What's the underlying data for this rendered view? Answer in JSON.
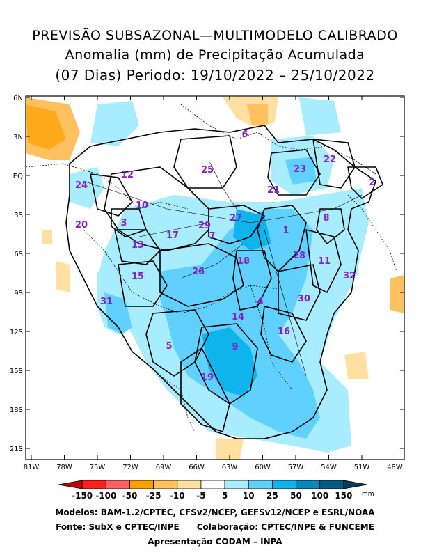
{
  "title": {
    "line1": "PREVISÃO SUBSAZONAL—MULTIMODELO CALIBRADO",
    "line2": "Anomalia (mm) de Precipitação Acumulada",
    "line3": "(07 Dias) Periodo: 19/10/2022 – 25/10/2022"
  },
  "lat_labels": [
    "6N",
    "3N",
    "EQ",
    "3S",
    "6S",
    "9S",
    "12S",
    "15S",
    "18S",
    "21S"
  ],
  "lon_labels": [
    "81W",
    "78W",
    "75W",
    "72W",
    "69W",
    "66W",
    "63W",
    "60W",
    "57W",
    "54W",
    "51W",
    "48W"
  ],
  "basins": [
    "1",
    "2",
    "3",
    "4",
    "5",
    "6",
    "7",
    "8",
    "9",
    "10",
    "11",
    "12",
    "13",
    "14",
    "15",
    "16",
    "17",
    "18",
    "19",
    "20",
    "21",
    "22",
    "23",
    "24",
    "25",
    "26",
    "27",
    "28",
    "29",
    "30",
    "31",
    "32"
  ],
  "legend": {
    "labels": [
      "-150",
      "-100",
      "-50",
      "-25",
      "-10",
      "-5",
      "5",
      "10",
      "25",
      "50",
      "100",
      "150"
    ],
    "unit": "mm",
    "colors": [
      "#c80000",
      "#ff2020",
      "#ff6060",
      "#ffa000",
      "#ffc060",
      "#ffe0a0",
      "#ffffff",
      "#a8ecff",
      "#60d0ff",
      "#10b4ec",
      "#0888b8",
      "#045c84",
      "#033c5c"
    ]
  },
  "footer": {
    "line1": "Modelos: BAM-1.2/CPTEC, CFSv2/NCEP, GEFSv12/NCEP e ESRL/NOAA",
    "line2": "Fonte: SubX e CPTEC/INPE      Colaboração: CPTEC/INPE & FUNCEME",
    "line3": "Apresentação CODAM – INPA"
  }
}
